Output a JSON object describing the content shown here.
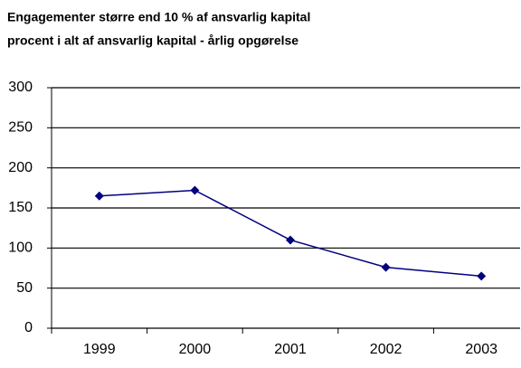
{
  "chart_data": {
    "type": "line",
    "title": "Engagementer større end 10 % af ansvarlig kapital",
    "subtitle": "procent i alt af ansvarlig kapital - årlig opgørelse",
    "categories": [
      "1999",
      "2000",
      "2001",
      "2002",
      "2003"
    ],
    "series": [
      {
        "name": "Engagementer",
        "color": "#000080",
        "values": [
          165,
          172,
          110,
          76,
          65
        ]
      }
    ],
    "ylim": [
      0,
      300
    ],
    "yticks": [
      0,
      50,
      100,
      150,
      200,
      250,
      300
    ],
    "grid": true
  }
}
